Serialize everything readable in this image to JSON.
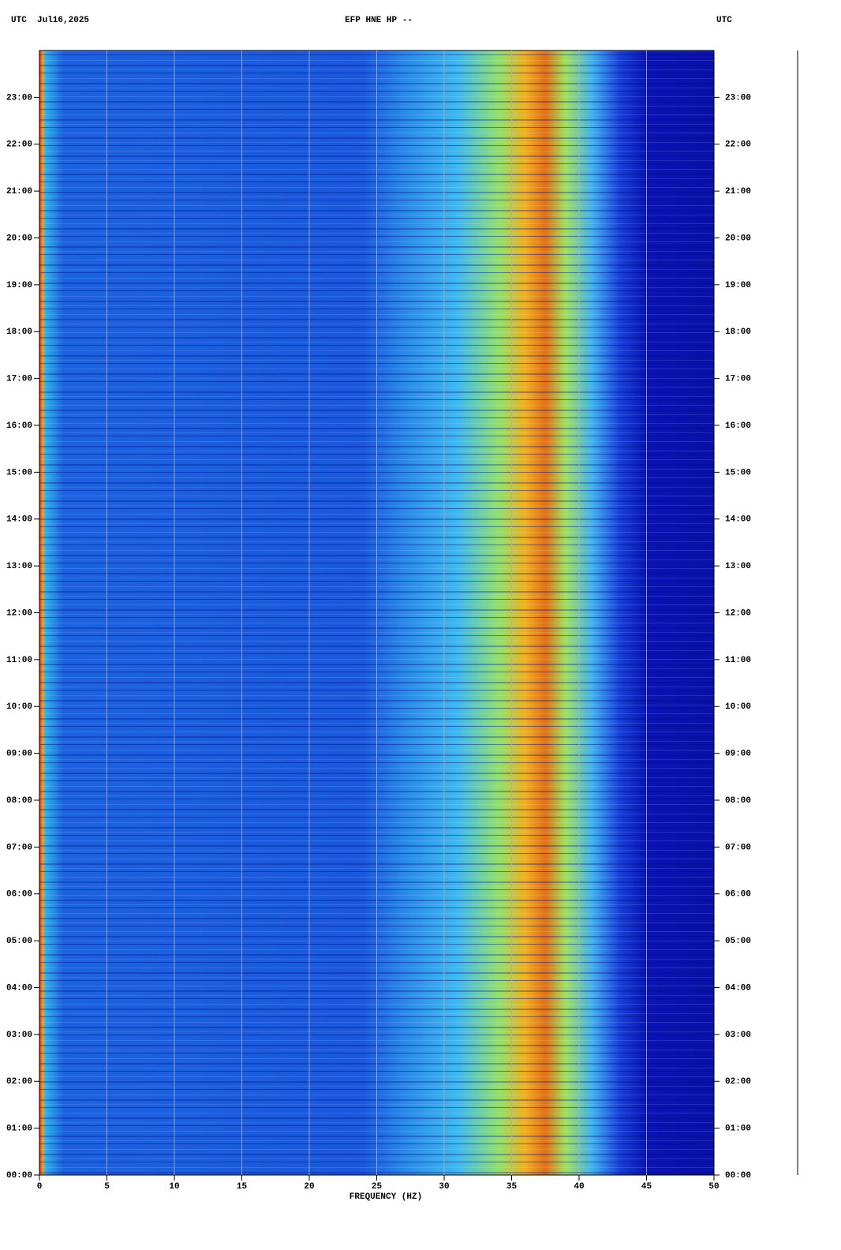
{
  "chart_data": {
    "type": "spectrogram",
    "title": "EFP HNE HP --",
    "date_label": "UTC  Jul16,2025",
    "right_label": "UTC",
    "x_label": "FREQUENCY (HZ)",
    "xlim": [
      0,
      50
    ],
    "xticks": [
      0,
      5,
      10,
      15,
      20,
      25,
      30,
      35,
      40,
      45,
      50
    ],
    "ylim": [
      0,
      24
    ],
    "yticks": [
      {
        "value": 0,
        "label": "00:00"
      },
      {
        "value": 1,
        "label": "01:00"
      },
      {
        "value": 2,
        "label": "02:00"
      },
      {
        "value": 3,
        "label": "03:00"
      },
      {
        "value": 4,
        "label": "04:00"
      },
      {
        "value": 5,
        "label": "05:00"
      },
      {
        "value": 6,
        "label": "06:00"
      },
      {
        "value": 7,
        "label": "07:00"
      },
      {
        "value": 8,
        "label": "08:00"
      },
      {
        "value": 9,
        "label": "09:00"
      },
      {
        "value": 10,
        "label": "10:00"
      },
      {
        "value": 11,
        "label": "11:00"
      },
      {
        "value": 12,
        "label": "12:00"
      },
      {
        "value": 13,
        "label": "13:00"
      },
      {
        "value": 14,
        "label": "14:00"
      },
      {
        "value": 15,
        "label": "15:00"
      },
      {
        "value": 16,
        "label": "16:00"
      },
      {
        "value": 17,
        "label": "17:00"
      },
      {
        "value": 18,
        "label": "18:00"
      },
      {
        "value": 19,
        "label": "19:00"
      },
      {
        "value": 20,
        "label": "20:00"
      },
      {
        "value": 21,
        "label": "21:00"
      },
      {
        "value": 22,
        "label": "22:00"
      },
      {
        "value": 23,
        "label": "23:00"
      }
    ],
    "grid": true
  }
}
